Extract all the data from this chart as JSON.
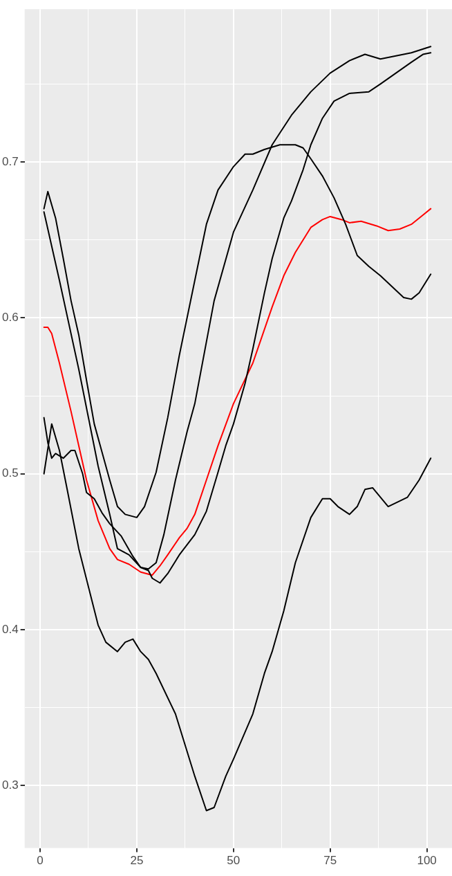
{
  "chart_data": {
    "type": "line",
    "xlim": [
      -4,
      106.5
    ],
    "ylim": [
      0.26,
      0.798
    ],
    "xticks": [
      0,
      {
        "value": 12.5,
        "label": null
      },
      25,
      {
        "value": 37.5,
        "label": null
      },
      50,
      {
        "value": 62.5,
        "label": null
      },
      75,
      {
        "value": 87.5,
        "label": null
      },
      100
    ],
    "yticks": [
      0.3,
      {
        "value": 0.35,
        "label": null
      },
      0.4,
      {
        "value": 0.45,
        "label": null
      },
      0.5,
      {
        "value": 0.55,
        "label": null
      },
      0.6,
      {
        "value": 0.65,
        "label": null
      },
      0.7,
      {
        "value": 0.75,
        "label": null
      }
    ],
    "grid": true,
    "legend": false,
    "marker": "none",
    "line_style": "solid",
    "series": [
      {
        "color": "#000000",
        "x": [
          1,
          2,
          4,
          6,
          8,
          10,
          12,
          14,
          16,
          18,
          20,
          22,
          25,
          27,
          30,
          33,
          36,
          40,
          43,
          46,
          50,
          53,
          55,
          58,
          62,
          66,
          68,
          70,
          73,
          76,
          79,
          82,
          85,
          88,
          91,
          94,
          96,
          98,
          101
        ],
        "values": [
          0.67,
          0.681,
          0.664,
          0.638,
          0.611,
          0.589,
          0.56,
          0.532,
          0.514,
          0.496,
          0.479,
          0.474,
          0.472,
          0.479,
          0.501,
          0.536,
          0.576,
          0.624,
          0.66,
          0.682,
          0.697,
          0.705,
          0.705,
          0.708,
          0.711,
          0.711,
          0.709,
          0.702,
          0.691,
          0.677,
          0.66,
          0.64,
          0.633,
          0.627,
          0.62,
          0.613,
          0.612,
          0.616,
          0.628
        ]
      },
      {
        "color": "#000000",
        "x": [
          1,
          5,
          10,
          15,
          18,
          20,
          23,
          26,
          28,
          30,
          32,
          35,
          38,
          40,
          45,
          50,
          55,
          60,
          65,
          70,
          75,
          80,
          84,
          88,
          92,
          96,
          101
        ],
        "values": [
          0.668,
          0.624,
          0.567,
          0.505,
          0.474,
          0.452,
          0.448,
          0.44,
          0.439,
          0.443,
          0.461,
          0.496,
          0.527,
          0.545,
          0.611,
          0.655,
          0.682,
          0.711,
          0.73,
          0.745,
          0.757,
          0.765,
          0.769,
          0.766,
          0.768,
          0.77,
          0.774
        ]
      },
      {
        "color": "#000000",
        "x": [
          1,
          3,
          5,
          7,
          10,
          15,
          17,
          20,
          22,
          24,
          26,
          28,
          30,
          35,
          40,
          43,
          45,
          48,
          50,
          55,
          58,
          60,
          63,
          66,
          70,
          73,
          75,
          77,
          80,
          82,
          84,
          86,
          90,
          95,
          98,
          101
        ],
        "values": [
          0.5,
          0.532,
          0.515,
          0.49,
          0.452,
          0.403,
          0.392,
          0.386,
          0.392,
          0.394,
          0.386,
          0.381,
          0.372,
          0.346,
          0.306,
          0.284,
          0.286,
          0.306,
          0.317,
          0.346,
          0.372,
          0.386,
          0.412,
          0.443,
          0.472,
          0.484,
          0.484,
          0.479,
          0.474,
          0.479,
          0.49,
          0.491,
          0.479,
          0.485,
          0.496,
          0.51
        ]
      },
      {
        "color": "#000000",
        "x": [
          1,
          2,
          3,
          4,
          6,
          8,
          9,
          11,
          12,
          14,
          16,
          18,
          21,
          24,
          26,
          28,
          29,
          31,
          33,
          36,
          40,
          43,
          46,
          48,
          50,
          53,
          55,
          58,
          60,
          63,
          65,
          68,
          70,
          73,
          76,
          80,
          85,
          88,
          92,
          96,
          99,
          101
        ],
        "values": [
          0.536,
          0.52,
          0.51,
          0.513,
          0.51,
          0.515,
          0.515,
          0.5,
          0.488,
          0.484,
          0.475,
          0.468,
          0.46,
          0.447,
          0.44,
          0.438,
          0.433,
          0.43,
          0.436,
          0.448,
          0.461,
          0.476,
          0.501,
          0.518,
          0.532,
          0.558,
          0.58,
          0.616,
          0.638,
          0.664,
          0.675,
          0.695,
          0.711,
          0.728,
          0.739,
          0.744,
          0.745,
          0.75,
          0.757,
          0.764,
          0.769,
          0.77
        ]
      },
      {
        "color": "#ff0000",
        "x": [
          1,
          2,
          3,
          5,
          8,
          10,
          12,
          15,
          18,
          20,
          23,
          26,
          29,
          31,
          33,
          36,
          38,
          40,
          43,
          46,
          50,
          55,
          60,
          63,
          66,
          70,
          73,
          75,
          78,
          80,
          83,
          87,
          90,
          93,
          96,
          99,
          101
        ],
        "values": [
          0.594,
          0.594,
          0.59,
          0.571,
          0.54,
          0.518,
          0.496,
          0.47,
          0.452,
          0.445,
          0.442,
          0.437,
          0.435,
          0.441,
          0.448,
          0.459,
          0.465,
          0.474,
          0.496,
          0.518,
          0.545,
          0.571,
          0.607,
          0.627,
          0.642,
          0.658,
          0.663,
          0.665,
          0.663,
          0.661,
          0.662,
          0.659,
          0.656,
          0.657,
          0.66,
          0.666,
          0.67
        ]
      }
    ]
  }
}
